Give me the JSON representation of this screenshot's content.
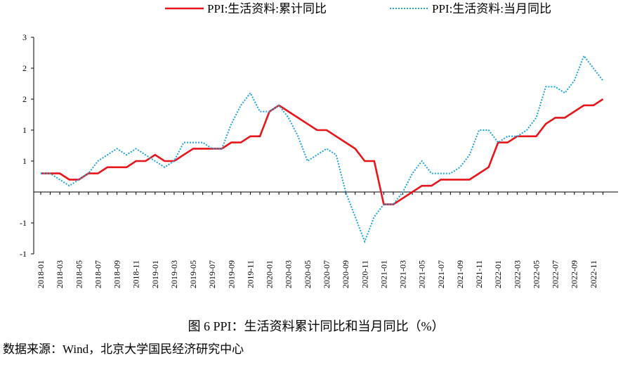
{
  "chart_data": {
    "type": "line",
    "title": "图 6 PPI：生活资料累计同比和当月同比（%）",
    "source": "数据来源：Wind，北京大学国民经济研究中心",
    "categories": [
      "2018-01",
      null,
      "2018-03",
      null,
      "2018-05",
      null,
      "2018-07",
      null,
      "2018-09",
      null,
      "2018-11",
      null,
      "2019-01",
      null,
      "2019-03",
      null,
      "2019-05",
      null,
      "2019-07",
      null,
      "2019-09",
      null,
      "2019-11",
      null,
      "2020-01",
      null,
      "2020-03",
      null,
      "2020-05",
      null,
      "2020-07",
      null,
      "2020-09",
      null,
      "2020-11",
      null,
      "2021-01",
      null,
      "2021-03",
      null,
      "2021-05",
      null,
      "2021-07",
      null,
      "2021-09",
      null,
      "2021-11",
      null,
      "2022-01",
      null,
      "2022-03",
      null,
      "2022-05",
      null,
      "2022-07",
      null,
      "2022-09",
      null,
      "2022-11",
      null
    ],
    "series": [
      {
        "name": "PPI:生活资料:累计同比",
        "color": "#e8141a",
        "dash": false,
        "values": [
          0.3,
          0.3,
          0.3,
          0.2,
          0.2,
          0.3,
          0.3,
          0.4,
          0.4,
          0.4,
          0.5,
          0.5,
          0.6,
          0.5,
          0.5,
          0.6,
          0.7,
          0.7,
          0.7,
          0.7,
          0.8,
          0.8,
          0.9,
          0.9,
          1.3,
          1.4,
          1.3,
          1.2,
          1.1,
          1.0,
          1.0,
          0.9,
          0.8,
          0.7,
          0.5,
          0.5,
          -0.2,
          -0.2,
          -0.1,
          0.0,
          0.1,
          0.1,
          0.2,
          0.2,
          0.2,
          0.2,
          0.3,
          0.4,
          0.8,
          0.8,
          0.9,
          0.9,
          0.9,
          1.1,
          1.2,
          1.2,
          1.3,
          1.4,
          1.4,
          1.5
        ]
      },
      {
        "name": "PPI:生活资料:当月同比",
        "color": "#1aa3dc",
        "dash": true,
        "values": [
          0.3,
          0.3,
          0.2,
          0.1,
          0.2,
          0.3,
          0.5,
          0.6,
          0.7,
          0.6,
          0.7,
          0.6,
          0.5,
          0.4,
          0.5,
          0.8,
          0.8,
          0.8,
          0.7,
          0.7,
          1.1,
          1.4,
          1.6,
          1.3,
          1.3,
          1.4,
          1.2,
          0.9,
          0.5,
          0.6,
          0.7,
          0.6,
          0.0,
          -0.4,
          -0.8,
          -0.4,
          -0.2,
          -0.2,
          0.0,
          0.3,
          0.5,
          0.3,
          0.3,
          0.3,
          0.4,
          0.6,
          1.0,
          1.0,
          0.8,
          0.9,
          0.9,
          1.0,
          1.2,
          1.7,
          1.7,
          1.6,
          1.8,
          2.2,
          2.0,
          1.8
        ]
      }
    ],
    "ylim": [
      -1,
      2.5
    ],
    "yticks": [
      {
        "value": 2.5,
        "label": "3"
      },
      {
        "value": 2,
        "label": "2"
      },
      {
        "value": 1.5,
        "label": "2"
      },
      {
        "value": 1,
        "label": "1"
      },
      {
        "value": 0.5,
        "label": "1"
      },
      {
        "value": -0.5,
        "label": "-1"
      },
      {
        "value": -1,
        "label": "-1"
      }
    ]
  }
}
